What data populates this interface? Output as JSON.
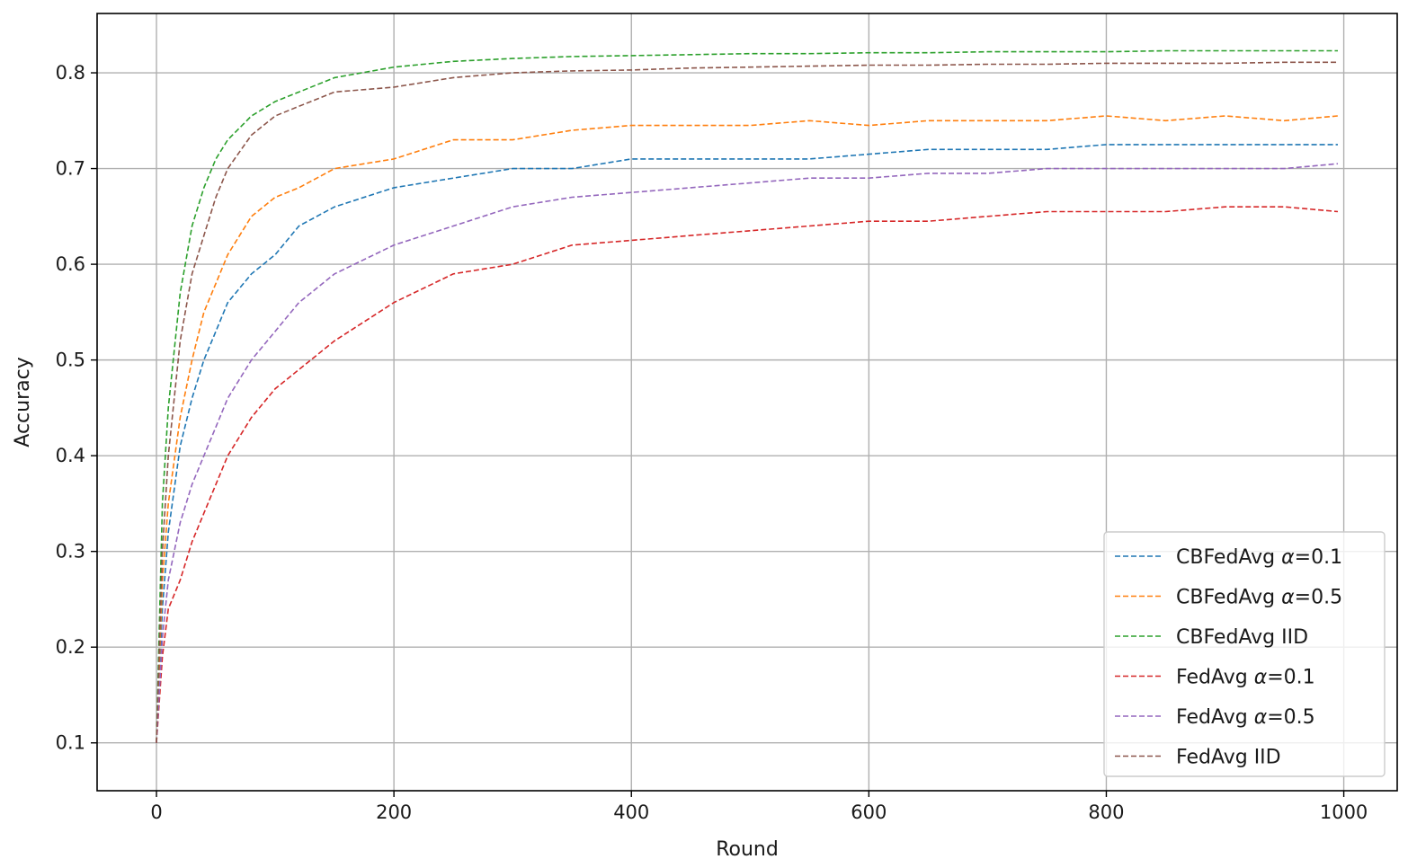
{
  "chart_data": {
    "type": "line",
    "title": "",
    "xlabel": "Round",
    "ylabel": "Accuracy",
    "xlim": [
      -50,
      1045
    ],
    "ylim": [
      0.05,
      0.862
    ],
    "xticks": [
      0,
      200,
      400,
      600,
      800,
      1000
    ],
    "xtick_labels": [
      "0",
      "200",
      "400",
      "600",
      "800",
      "1000"
    ],
    "yticks": [
      0.1,
      0.2,
      0.3,
      0.4,
      0.5,
      0.6,
      0.7,
      0.8
    ],
    "ytick_labels": [
      "0.1",
      "0.2",
      "0.3",
      "0.4",
      "0.5",
      "0.6",
      "0.7",
      "0.8"
    ],
    "grid": true,
    "line_style": "dashed",
    "legend_position": "lower right",
    "x": [
      0,
      5,
      10,
      20,
      30,
      40,
      50,
      60,
      80,
      100,
      120,
      150,
      200,
      250,
      300,
      350,
      400,
      450,
      500,
      550,
      600,
      650,
      700,
      750,
      800,
      850,
      900,
      950,
      995
    ],
    "series": [
      {
        "name": "CBFedAvg α=0.1",
        "legend_prefix": "CBFedAvg ",
        "legend_param": "α=0.1",
        "color": "#1f77b4",
        "values": [
          0.1,
          0.24,
          0.32,
          0.41,
          0.46,
          0.5,
          0.53,
          0.56,
          0.59,
          0.61,
          0.64,
          0.66,
          0.68,
          0.69,
          0.7,
          0.7,
          0.71,
          0.71,
          0.71,
          0.71,
          0.715,
          0.72,
          0.72,
          0.72,
          0.725,
          0.725,
          0.725,
          0.725,
          0.725
        ]
      },
      {
        "name": "CBFedAvg α=0.5",
        "legend_prefix": "CBFedAvg ",
        "legend_param": "α=0.5",
        "color": "#ff7f0e",
        "values": [
          0.1,
          0.27,
          0.35,
          0.44,
          0.5,
          0.55,
          0.58,
          0.61,
          0.65,
          0.67,
          0.68,
          0.7,
          0.71,
          0.73,
          0.73,
          0.74,
          0.745,
          0.745,
          0.745,
          0.75,
          0.745,
          0.75,
          0.75,
          0.75,
          0.755,
          0.75,
          0.755,
          0.75,
          0.755
        ]
      },
      {
        "name": "CBFedAvg IID",
        "legend_prefix": "CBFedAvg IID",
        "legend_param": "",
        "color": "#2ca02c",
        "values": [
          0.1,
          0.35,
          0.45,
          0.57,
          0.64,
          0.68,
          0.71,
          0.73,
          0.755,
          0.77,
          0.78,
          0.795,
          0.806,
          0.812,
          0.815,
          0.817,
          0.818,
          0.819,
          0.82,
          0.82,
          0.821,
          0.821,
          0.822,
          0.822,
          0.822,
          0.823,
          0.823,
          0.823,
          0.823
        ]
      },
      {
        "name": "FedAvg α=0.1",
        "legend_prefix": "FedAvg ",
        "legend_param": "α=0.1",
        "color": "#d62728",
        "values": [
          0.1,
          0.19,
          0.24,
          0.27,
          0.31,
          0.34,
          0.37,
          0.4,
          0.44,
          0.47,
          0.49,
          0.52,
          0.56,
          0.59,
          0.6,
          0.62,
          0.625,
          0.63,
          0.635,
          0.64,
          0.645,
          0.645,
          0.65,
          0.655,
          0.655,
          0.655,
          0.66,
          0.66,
          0.655
        ]
      },
      {
        "name": "FedAvg α=0.5",
        "legend_prefix": "FedAvg ",
        "legend_param": "α=0.5",
        "color": "#9467bd",
        "values": [
          0.1,
          0.21,
          0.27,
          0.33,
          0.37,
          0.4,
          0.43,
          0.46,
          0.5,
          0.53,
          0.56,
          0.59,
          0.62,
          0.64,
          0.66,
          0.67,
          0.675,
          0.68,
          0.685,
          0.69,
          0.69,
          0.695,
          0.695,
          0.7,
          0.7,
          0.7,
          0.7,
          0.7,
          0.705
        ]
      },
      {
        "name": "FedAvg IID",
        "legend_prefix": "FedAvg IID",
        "legend_param": "",
        "color": "#8c564b",
        "values": [
          0.1,
          0.3,
          0.4,
          0.52,
          0.59,
          0.63,
          0.67,
          0.7,
          0.735,
          0.755,
          0.765,
          0.78,
          0.785,
          0.795,
          0.8,
          0.802,
          0.803,
          0.805,
          0.806,
          0.807,
          0.808,
          0.808,
          0.809,
          0.809,
          0.81,
          0.81,
          0.81,
          0.811,
          0.811
        ]
      }
    ]
  }
}
